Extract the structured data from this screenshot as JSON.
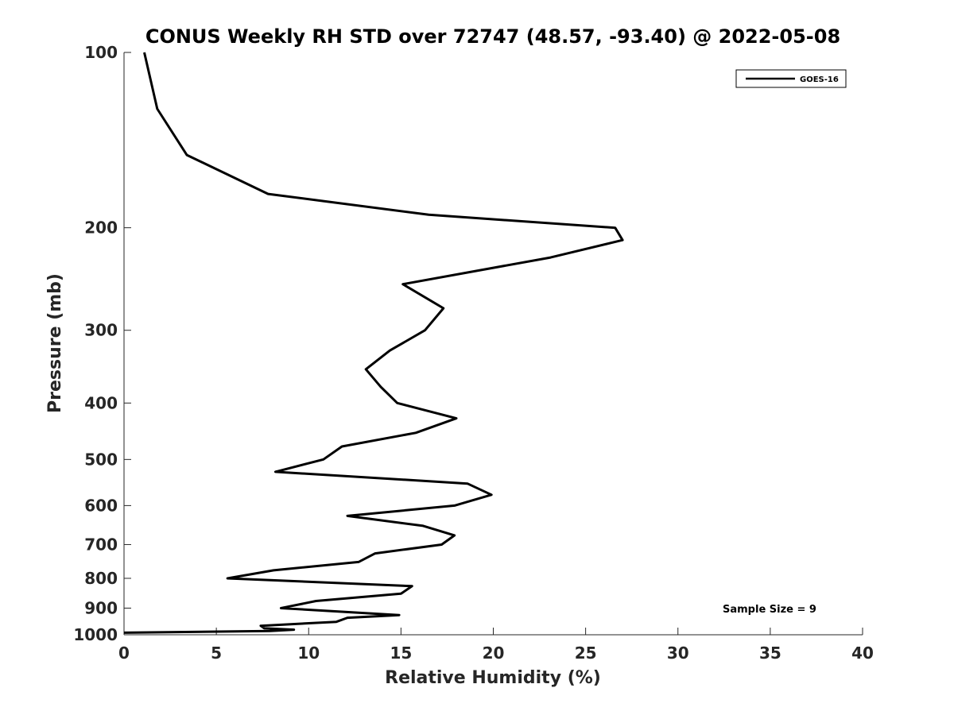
{
  "chart_data": {
    "type": "line",
    "title": "CONUS Weekly RH STD over 72747 (48.57, -93.40) @ 2022-05-08",
    "xlabel": "Relative Humidity (%)",
    "ylabel": "Pressure (mb)",
    "xlim": [
      0,
      40
    ],
    "ylim": [
      100,
      1000
    ],
    "y_scale": "log",
    "y_reversed": true,
    "x_ticks": [
      0,
      5,
      10,
      15,
      20,
      25,
      30,
      35,
      40
    ],
    "y_ticks": [
      100,
      200,
      300,
      400,
      500,
      600,
      700,
      800,
      900,
      1000
    ],
    "grid": false,
    "legend": {
      "position": "top-right",
      "entries": [
        "GOES-16"
      ]
    },
    "annotations": [
      "Sample Size = 9"
    ],
    "series": [
      {
        "name": "GOES-16",
        "color": "#000000",
        "points": [
          [
            1.1,
            100
          ],
          [
            1.8,
            125
          ],
          [
            3.4,
            150
          ],
          [
            7.8,
            175
          ],
          [
            16.5,
            190
          ],
          [
            26.6,
            200
          ],
          [
            27.0,
            210
          ],
          [
            23.1,
            225
          ],
          [
            15.1,
            250
          ],
          [
            17.3,
            275
          ],
          [
            16.3,
            300
          ],
          [
            14.4,
            325
          ],
          [
            13.1,
            350
          ],
          [
            13.9,
            375
          ],
          [
            14.8,
            400
          ],
          [
            18.0,
            425
          ],
          [
            15.8,
            450
          ],
          [
            11.8,
            475
          ],
          [
            10.8,
            500
          ],
          [
            8.2,
            525
          ],
          [
            18.6,
            550
          ],
          [
            19.9,
            575
          ],
          [
            17.9,
            600
          ],
          [
            12.1,
            625
          ],
          [
            16.2,
            650
          ],
          [
            17.9,
            675
          ],
          [
            17.2,
            700
          ],
          [
            13.6,
            725
          ],
          [
            12.7,
            750
          ],
          [
            8.1,
            775
          ],
          [
            5.6,
            800
          ],
          [
            15.6,
            825
          ],
          [
            15.0,
            850
          ],
          [
            10.4,
            875
          ],
          [
            8.5,
            900
          ],
          [
            14.9,
            925
          ],
          [
            12.1,
            935
          ],
          [
            11.5,
            950
          ],
          [
            7.4,
            965
          ],
          [
            7.6,
            975
          ],
          [
            9.2,
            980
          ],
          [
            7.9,
            985
          ],
          [
            0.0,
            992
          ]
        ]
      }
    ]
  }
}
